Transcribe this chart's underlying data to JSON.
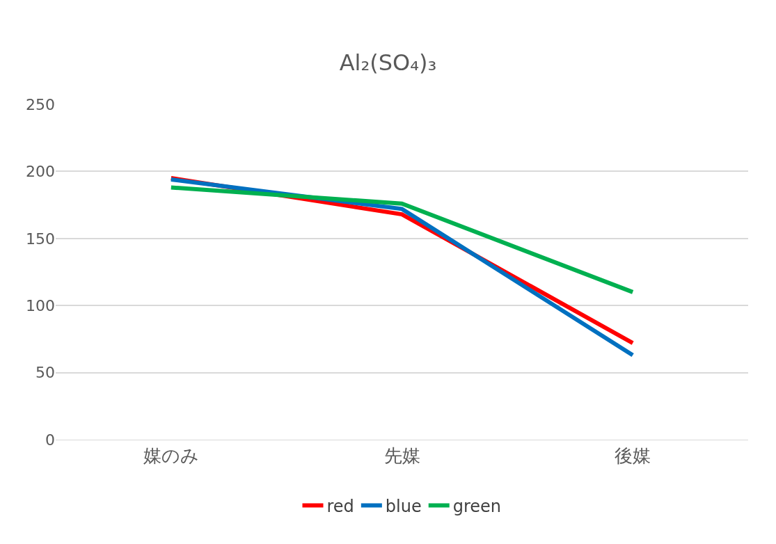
{
  "chart_data": {
    "type": "line",
    "title": "Al₂(SO₄)₃",
    "categories": [
      "媒のみ",
      "先媒",
      "後媒"
    ],
    "series": [
      {
        "name": "red",
        "color": "#ff0000",
        "values": [
          195,
          168,
          72
        ]
      },
      {
        "name": "blue",
        "color": "#0070c0",
        "values": [
          194,
          172,
          63
        ]
      },
      {
        "name": "green",
        "color": "#00b050",
        "values": [
          188,
          176,
          110
        ]
      }
    ],
    "ylim": [
      0,
      250
    ],
    "yticks": [
      0,
      50,
      100,
      150,
      200,
      250
    ],
    "grid": "y",
    "legend": "bottom",
    "marker": "none",
    "line_style": "solid"
  }
}
